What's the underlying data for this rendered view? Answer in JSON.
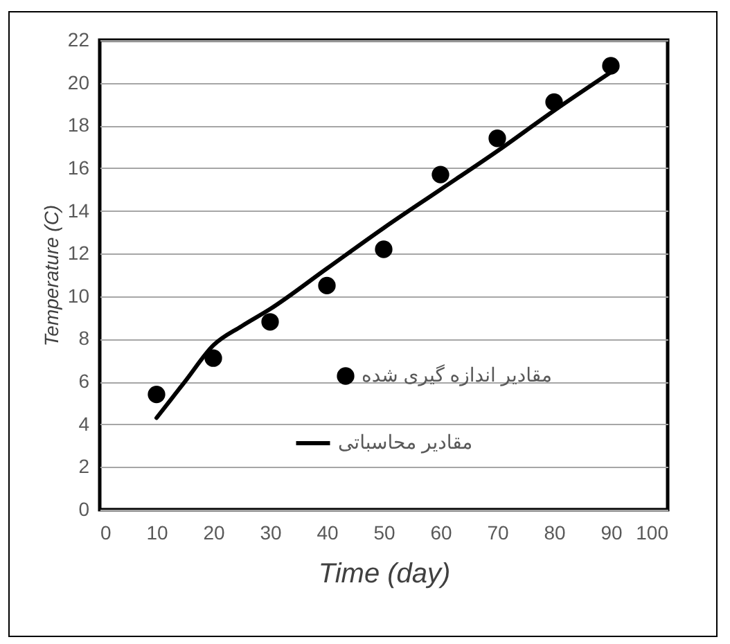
{
  "chart_data": {
    "type": "scatter",
    "xlabel": "Time (day)",
    "ylabel": "Temperature (C)",
    "xlim": [
      0,
      100
    ],
    "xticks": [
      0,
      10,
      20,
      30,
      40,
      50,
      60,
      70,
      80,
      90,
      100
    ],
    "ylim": [
      0,
      22
    ],
    "yticks": [
      0,
      2,
      4,
      6,
      8,
      10,
      12,
      14,
      16,
      18,
      20,
      22
    ],
    "grid": "y",
    "legend": "right",
    "series": [
      {
        "name": "مقادیر اندازه گیری شده",
        "type": "scatter",
        "marker": "circle",
        "color": "#000000",
        "x": [
          10,
          20,
          30,
          40,
          50,
          60,
          70,
          80,
          90
        ],
        "values": [
          5.4,
          7.1,
          8.8,
          10.5,
          12.2,
          15.7,
          17.4,
          19.1,
          20.8
        ]
      },
      {
        "name": "مقادیر محاسباتی",
        "type": "line",
        "line_style": "solid",
        "color": "#000000",
        "x": [
          10,
          15,
          20,
          25,
          30,
          40,
          50,
          60,
          70,
          80,
          90
        ],
        "values": [
          4.3,
          6.0,
          7.7,
          8.6,
          9.4,
          11.3,
          13.2,
          15.0,
          16.8,
          18.7,
          20.5
        ]
      }
    ]
  }
}
